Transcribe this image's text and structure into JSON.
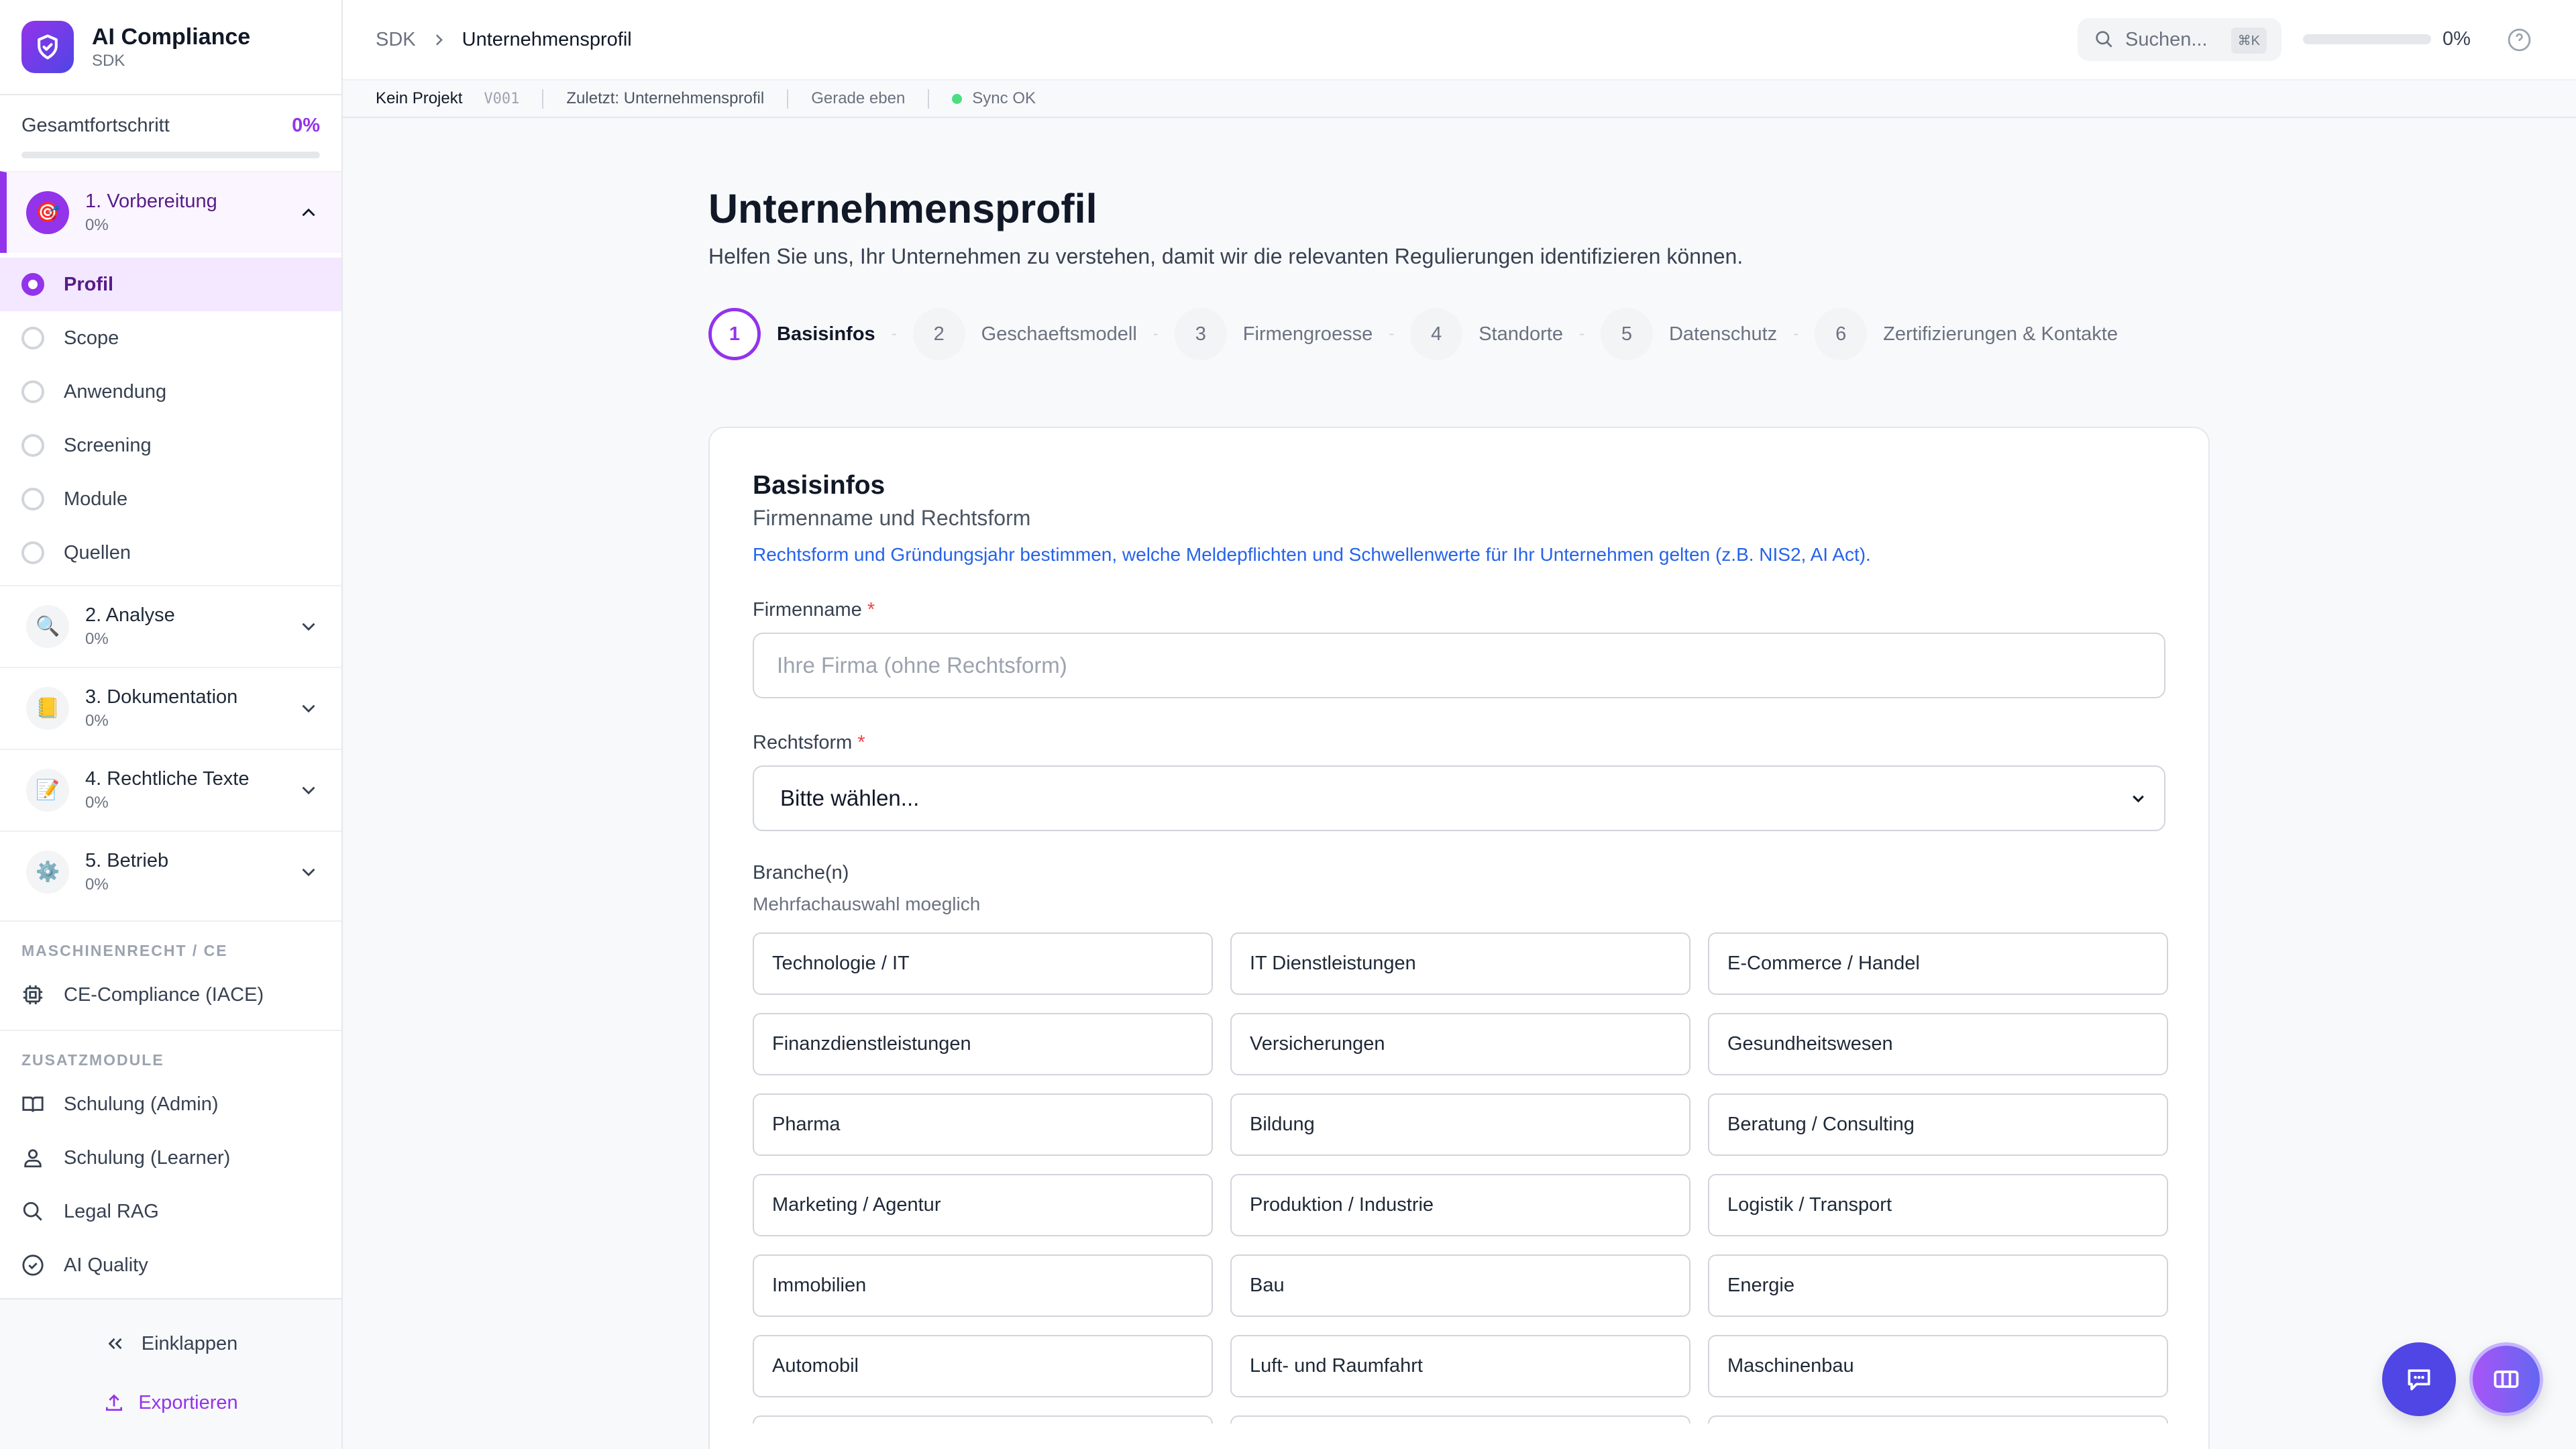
{
  "brand": {
    "title": "AI Compliance",
    "subtitle": "SDK"
  },
  "progress": {
    "label": "Gesamtfortschritt",
    "percent_label": "0%",
    "value": 0
  },
  "sections": [
    {
      "title": "1. Vorbereitung",
      "pct": "0%",
      "icon": "target-icon",
      "emoji": "🎯",
      "expanded": true
    },
    {
      "title": "2. Analyse",
      "pct": "0%",
      "icon": "magnifier-icon",
      "emoji": "🔍"
    },
    {
      "title": "3. Dokumentation",
      "pct": "0%",
      "icon": "ledger-icon",
      "emoji": "📒"
    },
    {
      "title": "4. Rechtliche Texte",
      "pct": "0%",
      "icon": "memo-icon",
      "emoji": "📝"
    },
    {
      "title": "5. Betrieb",
      "pct": "0%",
      "icon": "gear-icon",
      "emoji": "⚙️"
    }
  ],
  "substeps": [
    "Profil",
    "Scope",
    "Anwendung",
    "Screening",
    "Module",
    "Quellen"
  ],
  "groups": {
    "machinery": "MASCHINENRECHT / CE",
    "addons": "ZUSATZMODULE"
  },
  "machinery_items": [
    "CE-Compliance (IACE)"
  ],
  "addon_items": [
    "Schulung (Admin)",
    "Schulung (Learner)",
    "Legal RAG",
    "AI Quality"
  ],
  "footer": {
    "collapse": "Einklappen",
    "export": "Exportieren"
  },
  "header": {
    "breadcrumb_root": "SDK",
    "breadcrumb_current": "Unternehmensprofil",
    "search_placeholder": "Suchen...",
    "shortcut": "⌘K",
    "progress_label": "0%",
    "progress_value": 0
  },
  "infobar": {
    "project": "Kein Projekt",
    "version": "V001",
    "last": "Zuletzt: Unternehmensprofil",
    "time": "Gerade eben",
    "sync": "Sync OK"
  },
  "page": {
    "title": "Unternehmensprofil",
    "lead": "Helfen Sie uns, Ihr Unternehmen zu verstehen, damit wir die relevanten Regulierungen identifizieren können."
  },
  "steps": [
    {
      "num": "1",
      "label": "Basisinfos",
      "active": true
    },
    {
      "num": "2",
      "label": "Geschaeftsmodell"
    },
    {
      "num": "3",
      "label": "Firmengroesse"
    },
    {
      "num": "4",
      "label": "Standorte"
    },
    {
      "num": "5",
      "label": "Datenschutz"
    },
    {
      "num": "6",
      "label": "Zertifizierungen & Kontakte"
    }
  ],
  "form": {
    "title": "Basisinfos",
    "subtitle": "Firmenname und Rechtsform",
    "hint": "Rechtsform und Gründungsjahr bestimmen, welche Meldepflichten und Schwellenwerte für Ihr Unternehmen gelten (z.B. NIS2, AI Act).",
    "company_label": "Firmenname",
    "company_placeholder": "Ihre Firma (ohne Rechtsform)",
    "company_value": "",
    "legal_label": "Rechtsform",
    "legal_value": "Bitte wählen...",
    "industry_label": "Branche(n)",
    "industry_hint": "Mehrfachauswahl moeglich",
    "required_mark": "*",
    "industries": [
      "Technologie / IT",
      "IT Dienstleistungen",
      "E-Commerce / Handel",
      "Finanzdienstleistungen",
      "Versicherungen",
      "Gesundheitswesen",
      "Pharma",
      "Bildung",
      "Beratung / Consulting",
      "Marketing / Agentur",
      "Produktion / Industrie",
      "Logistik / Transport",
      "Immobilien",
      "Bau",
      "Energie",
      "Automobil",
      "Luft- und Raumfahrt",
      "Maschinenbau",
      "",
      "",
      ""
    ]
  },
  "colors": {
    "accent": "#9333ea",
    "link": "#2563eb",
    "chat_button": "#4f46e5",
    "sync_ok": "#4ade80"
  }
}
